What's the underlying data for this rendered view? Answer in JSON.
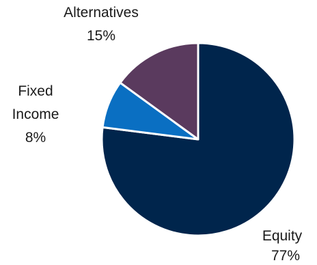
{
  "chart_data": {
    "type": "pie",
    "slices": [
      {
        "name": "Equity",
        "value": 77,
        "label": "Equity",
        "value_label": "77%",
        "color": "#00254c"
      },
      {
        "name": "Fixed Income",
        "value": 8,
        "label_lines": [
          "Fixed",
          "Income"
        ],
        "value_label": "8%",
        "color": "#0a6fc2"
      },
      {
        "name": "Alternatives",
        "value": 15,
        "label": "Alternatives",
        "value_label": "15%",
        "color": "#5a3a5e"
      }
    ],
    "legend": "none",
    "slice_border_color": "#ffffff"
  }
}
